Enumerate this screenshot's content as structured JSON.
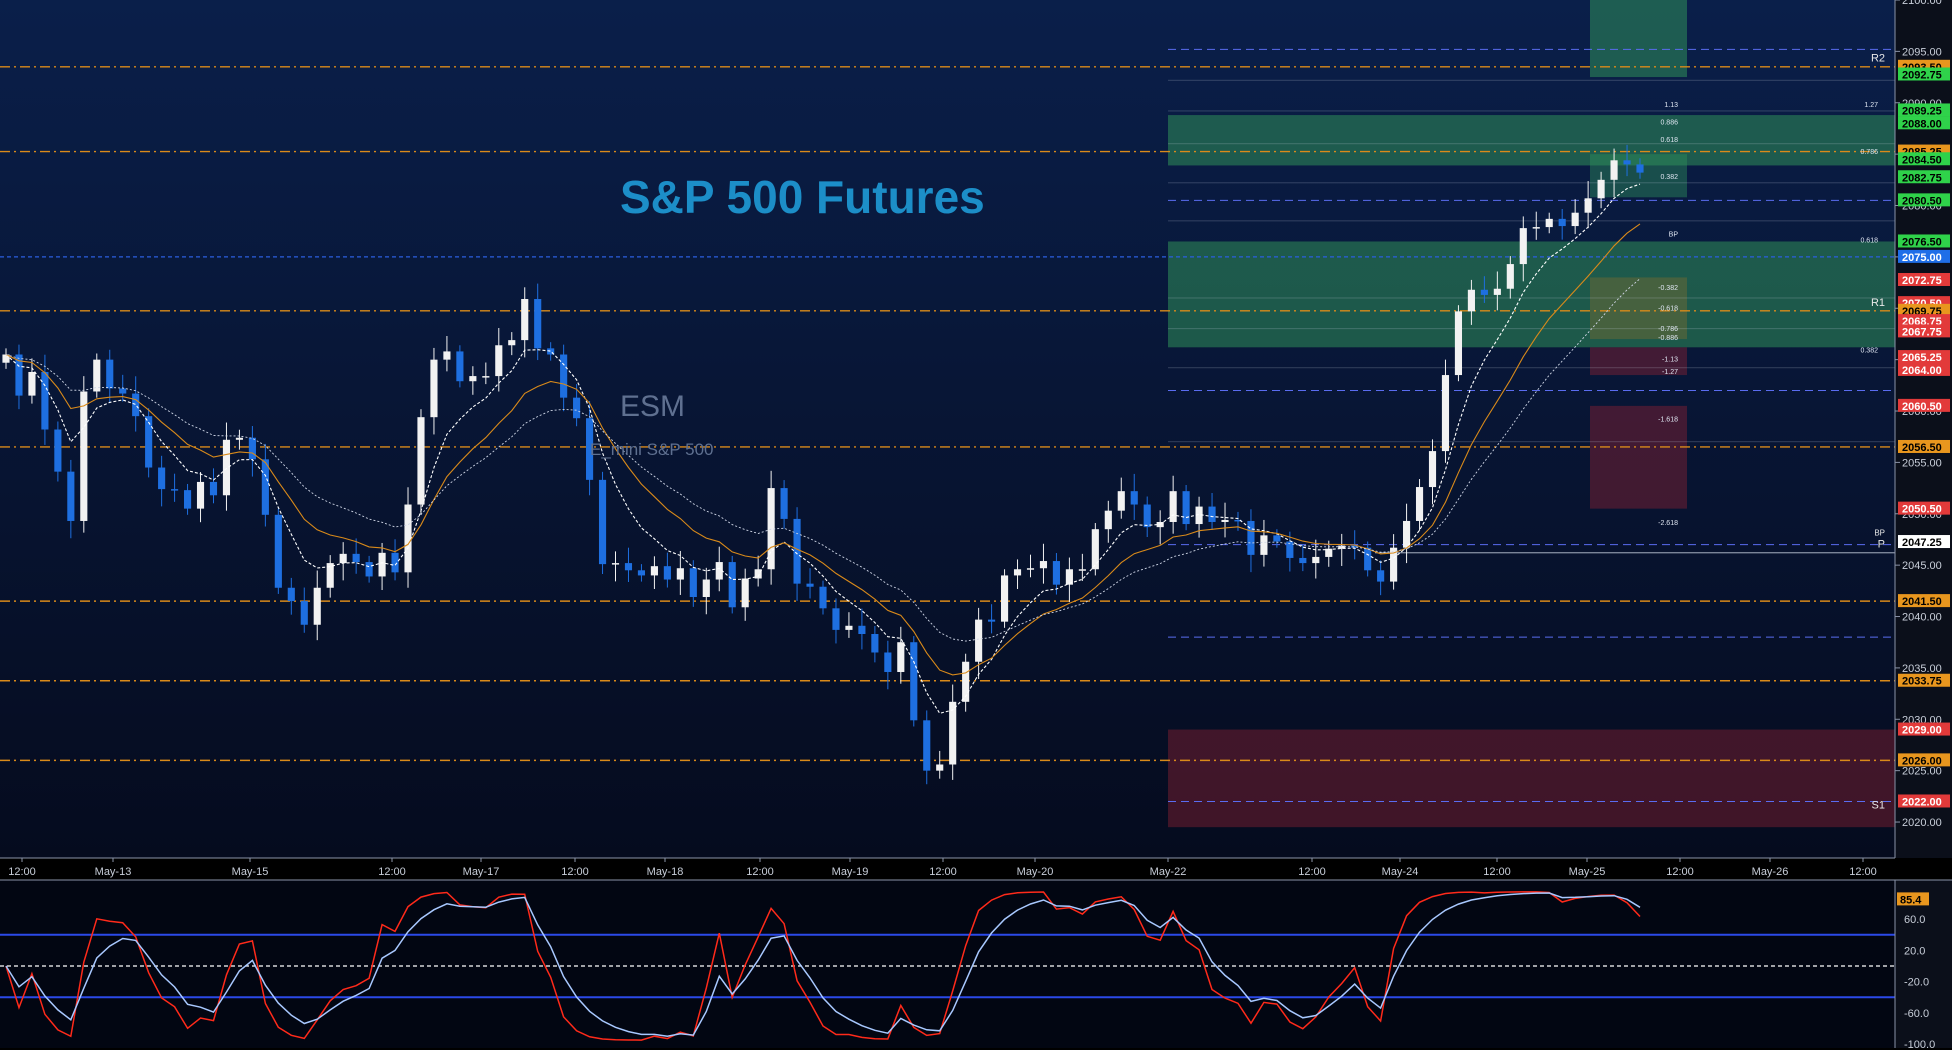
{
  "colors": {
    "bg_top": "#0a1f4a",
    "bg_bottom": "#050b1e",
    "candle_up": "#f2f2f2",
    "candle_down": "#1e6fe0",
    "level_line": "#d98a1a",
    "zone_green": "#2f8f5a",
    "zone_red": "#8a2233",
    "title": "#1c8ec8",
    "ema_fast": "#ffffff",
    "ema_slow": "#d98a1a",
    "osc_red": "#ff2a1a",
    "osc_blue": "#a8c8ff"
  },
  "titles": {
    "main": "S&P 500 Futures",
    "symbol": "ESM",
    "name": "E_mini S&P 500"
  },
  "chart_data": [
    {
      "type": "candlestick",
      "title": "S&P 500 Futures",
      "ylim": [
        2016.5,
        2100
      ],
      "y_ticks": [
        2020.0,
        2025.0,
        2030.0,
        2035.0,
        2040.0,
        2045.0,
        2050.0,
        2055.0,
        2060.0,
        2065.0,
        2070.0,
        2075.0,
        2080.0,
        2085.0,
        2090.0,
        2095.0,
        2100.0
      ],
      "x_ticks": [
        "12:00",
        "May-13",
        "May-15",
        "12:00",
        "May-17",
        "12:00",
        "May-18",
        "12:00",
        "May-19",
        "12:00",
        "May-20",
        "May-22",
        "12:00",
        "May-24",
        "12:00",
        "May-25",
        "12:00",
        "May-26",
        "12:00"
      ],
      "closes_approx": [
        2065.5,
        2061.5,
        2063.8,
        2058.2,
        2054.1,
        2049.3,
        2061.9,
        2065.0,
        2062.2,
        2061.7,
        2059.5,
        2054.5,
        2052.4,
        2052.3,
        2050.5,
        2053.1,
        2051.8,
        2057.2,
        2057.4,
        2055.3,
        2049.9,
        2042.8,
        2041.5,
        2039.2,
        2042.8,
        2045.2,
        2046.1,
        2045.3,
        2043.9,
        2046.2,
        2044.3,
        2050.9,
        2059.4,
        2065.0,
        2065.8,
        2062.9,
        2063.4,
        2063.4,
        2066.4,
        2066.9,
        2070.9,
        2066.1,
        2065.5,
        2061.3,
        2059.3,
        2053.3,
        2045.1,
        2045.2,
        2044.5,
        2044.0,
        2044.9,
        2043.6,
        2044.7,
        2041.9,
        2043.6,
        2045.3,
        2040.9,
        2043.7,
        2044.6,
        2052.5,
        2049.5,
        2043.2,
        2042.9,
        2040.8,
        2038.7,
        2039.1,
        2038.3,
        2036.5,
        2034.6,
        2037.5,
        2029.9,
        2025.0,
        2025.6,
        2031.7,
        2035.6,
        2039.7,
        2039.5,
        2044.0,
        2044.6,
        2044.7,
        2045.4,
        2043.1,
        2044.6,
        2044.6,
        2048.5,
        2050.3,
        2052.2,
        2050.9,
        2048.7,
        2049.2,
        2052.2,
        2049.0,
        2050.7,
        2049.2,
        2049.4,
        2049.3,
        2046.0,
        2047.9,
        2047.3,
        2045.7,
        2045.2,
        2045.8,
        2046.6,
        2046.9,
        2046.7,
        2044.5,
        2043.4,
        2046.7,
        2049.3,
        2052.6,
        2056.1,
        2063.5,
        2069.7,
        2071.8,
        2071.3,
        2071.9,
        2074.3,
        2077.8,
        2077.9,
        2078.7,
        2078.0,
        2079.3,
        2080.7,
        2082.5,
        2084.4,
        2084.0,
        2083.2
      ],
      "price_labels": [
        {
          "text": "2093.50",
          "color": "#e8961e"
        },
        {
          "text": "2092.75",
          "color": "#2fd24a"
        },
        {
          "text": "2089.25",
          "color": "#2fd24a"
        },
        {
          "text": "2088.00",
          "color": "#2fd24a"
        },
        {
          "text": "2085.25",
          "color": "#e8961e"
        },
        {
          "text": "2084.50",
          "color": "#2fd24a"
        },
        {
          "text": "2082.75",
          "color": "#2fd24a"
        },
        {
          "text": "2080.50",
          "color": "#2fd24a"
        },
        {
          "text": "2076.50",
          "color": "#2fd24a"
        },
        {
          "text": "2075.00",
          "color": "#1f6ee8"
        },
        {
          "text": "2072.75",
          "color": "#e23a3a"
        },
        {
          "text": "2070.50",
          "color": "#e23a3a"
        },
        {
          "text": "2069.75",
          "color": "#e8961e"
        },
        {
          "text": "2068.75",
          "color": "#e23a3a"
        },
        {
          "text": "2067.75",
          "color": "#e23a3a"
        },
        {
          "text": "2065.25",
          "color": "#e23a3a"
        },
        {
          "text": "2064.00",
          "color": "#e23a3a"
        },
        {
          "text": "2060.50",
          "color": "#e23a3a"
        },
        {
          "text": "2056.50",
          "color": "#e8961e"
        },
        {
          "text": "2050.50",
          "color": "#e23a3a"
        },
        {
          "text": "2047.25",
          "color": "#ffffff"
        },
        {
          "text": "2041.50",
          "color": "#e8961e"
        },
        {
          "text": "2033.75",
          "color": "#e8961e"
        },
        {
          "text": "2029.00",
          "color": "#e23a3a"
        },
        {
          "text": "2026.00",
          "color": "#e8961e"
        },
        {
          "text": "2022.00",
          "color": "#e23a3a"
        }
      ],
      "levels": [
        "R2",
        "R1",
        "BP",
        "P",
        "S1"
      ],
      "fib_labels": [
        "1.27",
        "1.13",
        "0.886",
        "0.786",
        "0.618",
        "0.382",
        "0.618",
        "-0.382",
        "-0.618",
        "-0.786",
        "-0.886",
        "-1.13",
        "-1.27",
        "-1.618",
        "-2.618",
        "0.382",
        "BP"
      ],
      "series": [
        {
          "name": "EMA fast"
        },
        {
          "name": "EMA slow"
        }
      ]
    },
    {
      "type": "line",
      "title": "",
      "ylim": [
        -100,
        100
      ],
      "y_ticks": [
        -100.0,
        -60.0,
        -20.0,
        20.0,
        60.0
      ],
      "current_value": "85.4",
      "series": [
        {
          "name": "stoch_k"
        },
        {
          "name": "stoch_d"
        }
      ]
    }
  ]
}
